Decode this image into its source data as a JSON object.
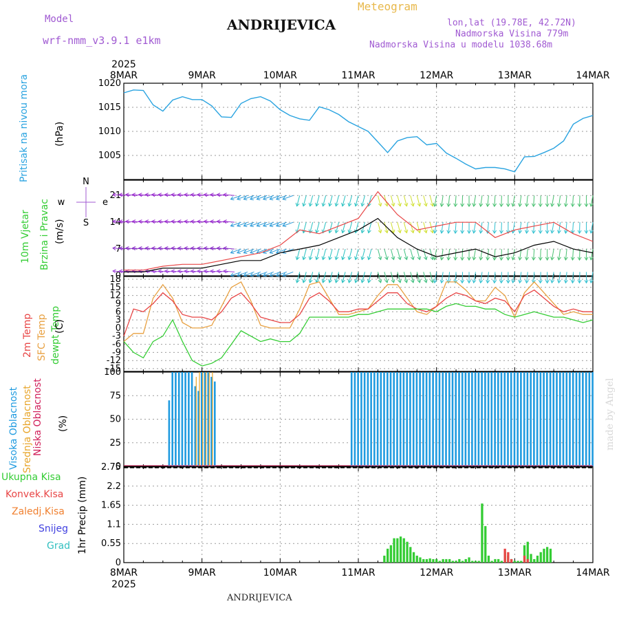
{
  "header": {
    "model_label": "Model",
    "model_name": "wrf-nmm_v3.9.1 e1km",
    "title": "ANDRIJEVICA",
    "meteogram": "Meteogram",
    "lonlat": "lon,lat (19.78E, 42.72N)",
    "altitude": "Nadmorska Visina 779m",
    "model_altitude": "Nadmorska Visina u modelu 1038.68m",
    "footer_title": "ANDRIJEVICA",
    "credit": "made by Angel"
  },
  "time_axis": {
    "year_top": "2025",
    "year_bottom": "2025",
    "labels": [
      "8MAR",
      "9MAR",
      "10MAR",
      "11MAR",
      "12MAR",
      "13MAR",
      "14MAR"
    ]
  },
  "panel_labels": {
    "pressure": [
      "Pritisak na nivou mora",
      "(hPa)"
    ],
    "wind": [
      "10m Vjetar",
      "Brzina i Pravac",
      "(m/s)"
    ],
    "compass": {
      "w": "w",
      "e": "e",
      "n": "N",
      "s": "S"
    },
    "temp": [
      "2m Temp",
      "SFC Temp",
      "dewpt Temp",
      "(C)"
    ],
    "cloud": [
      "Visoka Oblacnost",
      "Srednja Oblacnost",
      "Niska Oblacnost",
      "(%)"
    ],
    "precip_unit": "1hr Precip (mm)",
    "precip_legend": [
      "Ukupna Kisa",
      "Konvek.Kisa",
      "Zaledj.Kisa",
      "Snijeg",
      "Grad"
    ]
  },
  "colors": {
    "pressure": "#29a3e0",
    "t2m": "#e84545",
    "tsfc": "#e8a040",
    "dewpt": "#33cc33",
    "high_cloud": "#1f9be0",
    "mid_cloud": "#e8a52a",
    "low_cloud": "#d0205a",
    "total_rain": "#33cc33",
    "conv_rain": "#e84545",
    "freezing_rain": "#f08030",
    "snow": "#4040e0",
    "hail": "#33c0c0",
    "purple": "#a05ad2"
  },
  "chart_data": [
    {
      "type": "line",
      "name": "pressure",
      "ylim": [
        1000,
        1020
      ],
      "yticks": [
        1005,
        1010,
        1015,
        1020
      ],
      "grid": true,
      "x": [
        0,
        3,
        6,
        9,
        12,
        15,
        18,
        21,
        24,
        27,
        30,
        33,
        36,
        39,
        42,
        45,
        48,
        51,
        54,
        57,
        60,
        63,
        66,
        69,
        72,
        75,
        78,
        81,
        84,
        87,
        90,
        93,
        96,
        99,
        102,
        105,
        108,
        111,
        114,
        117,
        120,
        123,
        126,
        129,
        132,
        135,
        138,
        141,
        144
      ],
      "series": [
        {
          "name": "Pritisak na nivou mora",
          "values": [
            1018,
            1018.6,
            1018.5,
            1015.5,
            1014.2,
            1016.5,
            1017.2,
            1016.6,
            1016.6,
            1015.3,
            1013,
            1012.9,
            1015.8,
            1016.8,
            1017.2,
            1016.3,
            1014.5,
            1013.3,
            1012.6,
            1012.3,
            1015.1,
            1014.5,
            1013.5,
            1012,
            1011,
            1010,
            1007.8,
            1005.6,
            1008,
            1008.7,
            1008.9,
            1007.2,
            1007.5,
            1005.5,
            1004.4,
            1003.2,
            1002.2,
            1002.5,
            1002.5,
            1002.2,
            1001.6,
            1004.7,
            1004.8,
            1005.6,
            1006.5,
            1008,
            1011.5,
            1012.7,
            1013.3
          ]
        }
      ]
    },
    {
      "type": "line",
      "name": "wind",
      "ylim": [
        0,
        25
      ],
      "yticks": [
        0,
        7,
        14,
        21
      ],
      "grid": true,
      "x": [
        0,
        6,
        12,
        18,
        24,
        30,
        36,
        42,
        48,
        54,
        60,
        66,
        72,
        78,
        84,
        90,
        96,
        102,
        108,
        114,
        120,
        126,
        132,
        138,
        144
      ],
      "series": [
        {
          "name": "wind speed",
          "values": [
            1,
            1,
            2,
            2,
            2,
            3,
            4,
            4,
            6,
            7,
            8,
            10,
            12,
            15,
            10,
            7,
            5,
            6,
            7,
            5,
            6,
            8,
            9,
            7,
            6
          ]
        },
        {
          "name": "wind gust",
          "values": [
            1.5,
            1.5,
            2.5,
            3,
            3,
            4,
            5,
            6,
            8,
            12,
            11,
            13,
            15,
            22,
            16,
            12,
            13,
            14,
            14,
            10,
            12,
            13,
            14,
            11,
            9
          ]
        }
      ]
    },
    {
      "type": "line",
      "name": "temperature",
      "ylim": [
        -16,
        19
      ],
      "yticks": [
        -15,
        -12,
        -9,
        -6,
        -3,
        0,
        3,
        6,
        9,
        12,
        15,
        18
      ],
      "grid": true,
      "x": [
        0,
        3,
        6,
        9,
        12,
        15,
        18,
        21,
        24,
        27,
        30,
        33,
        36,
        39,
        42,
        45,
        48,
        51,
        54,
        57,
        60,
        63,
        66,
        69,
        72,
        75,
        78,
        81,
        84,
        87,
        90,
        93,
        96,
        99,
        102,
        105,
        108,
        111,
        114,
        117,
        120,
        123,
        126,
        129,
        132,
        135,
        138,
        141,
        144
      ],
      "series": [
        {
          "name": "2m Temp",
          "values": [
            -3,
            7,
            6,
            9,
            13,
            10,
            5,
            4,
            4,
            3,
            6,
            11,
            13,
            9,
            4,
            3,
            2,
            2,
            5,
            11,
            13,
            10,
            6,
            6,
            7,
            7,
            10,
            13,
            13,
            9,
            7,
            6,
            8,
            11,
            13,
            12,
            10,
            9,
            11,
            10,
            6,
            12,
            14,
            11,
            8,
            6,
            7,
            6,
            6
          ]
        },
        {
          "name": "SFC Temp",
          "values": [
            -5,
            -2,
            -2,
            11,
            16,
            11,
            2,
            0,
            0,
            1,
            8,
            15,
            17,
            10,
            1,
            0,
            0,
            0,
            7,
            16,
            17,
            11,
            5,
            5,
            6,
            7,
            12,
            16,
            16,
            11,
            6,
            5,
            8,
            17,
            17,
            14,
            10,
            10,
            15,
            12,
            4,
            13,
            17,
            13,
            9,
            5,
            6,
            5,
            5
          ]
        },
        {
          "name": "dewpt Temp",
          "values": [
            -5,
            -9,
            -11,
            -5,
            -3,
            3,
            -5,
            -12,
            -14,
            -13,
            -11,
            -6,
            -1,
            -3,
            -5,
            -4,
            -5,
            -5,
            -2,
            4,
            4,
            4,
            4,
            4,
            5,
            5,
            6,
            7,
            7,
            7,
            7,
            7,
            6,
            8,
            9,
            8,
            8,
            7,
            7,
            5,
            4,
            5,
            6,
            5,
            4,
            4,
            3,
            2,
            3
          ]
        }
      ]
    },
    {
      "type": "bar",
      "name": "cloud",
      "ylim": [
        0,
        100
      ],
      "yticks": [
        0,
        25,
        50,
        75,
        100
      ],
      "grid": true,
      "x": [
        14,
        15,
        16,
        17,
        18,
        19,
        20,
        21,
        22,
        23,
        24,
        25,
        26,
        27,
        28,
        29,
        30,
        31,
        32,
        33,
        34,
        35,
        36,
        37,
        38,
        39,
        40,
        41,
        42,
        43,
        44,
        45,
        46,
        47,
        48,
        49,
        50,
        51,
        52,
        53,
        54,
        55,
        56,
        57,
        58,
        59,
        60,
        61,
        62,
        63,
        64,
        65,
        66,
        67,
        68,
        69,
        70,
        71,
        72,
        73,
        74,
        75,
        76,
        77,
        78,
        79,
        80,
        81,
        82,
        83,
        84,
        85,
        86,
        87,
        88,
        89,
        90,
        91,
        92,
        93,
        94,
        95,
        96,
        97,
        98,
        99,
        100,
        101,
        102,
        103,
        104,
        105,
        106,
        107,
        108,
        109,
        110,
        111,
        112,
        113,
        114,
        115,
        116,
        117,
        118,
        119,
        120,
        121,
        122,
        123,
        124,
        125,
        126,
        127,
        128,
        129,
        130,
        131,
        132,
        133,
        134,
        135,
        136,
        137,
        138,
        139,
        140,
        141,
        142,
        143,
        144
      ],
      "series": [
        {
          "name": "Visoka Oblacnost",
          "values": [
            70,
            100,
            100,
            100,
            100,
            100,
            100,
            100,
            85,
            80,
            100,
            100,
            100,
            95,
            90,
            0,
            0,
            0,
            0,
            0,
            0,
            0,
            0,
            0,
            0,
            0,
            0,
            0,
            0,
            0,
            0,
            0,
            0,
            0,
            0,
            0,
            0,
            0,
            0,
            0,
            0,
            0,
            0,
            0,
            0,
            0,
            0,
            0,
            0,
            0,
            0,
            0,
            0,
            0,
            0,
            0,
            100,
            100,
            100,
            100,
            100,
            100,
            100,
            100,
            100,
            100,
            100,
            100,
            100,
            100,
            100,
            100,
            100,
            100,
            100,
            100,
            100,
            100,
            100,
            100,
            100,
            100,
            100,
            100,
            100,
            100,
            100,
            100,
            100,
            100,
            100,
            100,
            100,
            100,
            100,
            100,
            100,
            100,
            100,
            100,
            100,
            100,
            100,
            100,
            100,
            100,
            100,
            100,
            100,
            100,
            100,
            100,
            100,
            100,
            100,
            100,
            100,
            100,
            100,
            100,
            100,
            100,
            100,
            100,
            100,
            100,
            100,
            100,
            100,
            100,
            100
          ]
        },
        {
          "name": "Srednja Oblacnost",
          "values": [
            0,
            0,
            0,
            0,
            0,
            0,
            0,
            0,
            95,
            100,
            100,
            100,
            100,
            100,
            0,
            0,
            0,
            0,
            0,
            0,
            0,
            0,
            0,
            0,
            0,
            0,
            0,
            0,
            0,
            0,
            0,
            0,
            0,
            0,
            0,
            0,
            0,
            0,
            0,
            0,
            0,
            0,
            0,
            0,
            0,
            0,
            0,
            0,
            0,
            0,
            0,
            0,
            0,
            0,
            0,
            0,
            0,
            0,
            0,
            0,
            0,
            0,
            0,
            0,
            0,
            0,
            0,
            0,
            0,
            0,
            0,
            0,
            0,
            0,
            0,
            0,
            0,
            0,
            0,
            0,
            0,
            0,
            0,
            0,
            0,
            0,
            0,
            0,
            0,
            0,
            0,
            0,
            0,
            0,
            0,
            0,
            0,
            0,
            0,
            0,
            0,
            0,
            0,
            0,
            0,
            0,
            0,
            0,
            0,
            0,
            0,
            0,
            0,
            0,
            0,
            0,
            0,
            0,
            0,
            0,
            0,
            0,
            0,
            0,
            0,
            0,
            0,
            0,
            0,
            0,
            0
          ]
        },
        {
          "name": "Niska Oblacnost",
          "values": [
            0,
            0,
            0,
            0,
            0,
            0,
            0,
            0,
            0,
            0,
            0,
            0,
            0,
            0,
            0,
            0,
            0,
            0,
            0,
            0,
            0,
            0,
            0,
            0,
            0,
            0,
            0,
            0,
            0,
            0,
            0,
            0,
            0,
            0,
            0,
            0,
            0,
            0,
            0,
            0,
            0,
            0,
            0,
            0,
            0,
            0,
            0,
            0,
            0,
            0,
            0,
            0,
            0,
            0,
            0,
            0,
            0,
            0,
            0,
            0,
            0,
            0,
            0,
            0,
            0,
            0,
            0,
            0,
            0,
            0,
            0,
            0,
            0,
            0,
            0,
            0,
            0,
            0,
            0,
            0,
            0,
            0,
            0,
            0,
            0,
            0,
            0,
            0,
            0,
            0,
            0,
            0,
            0,
            0,
            0,
            0,
            0,
            0,
            0,
            0,
            0,
            0,
            0,
            0,
            0,
            0,
            0,
            0,
            0,
            0,
            0,
            0,
            0,
            0,
            0,
            0,
            0,
            0,
            0,
            0,
            0,
            0,
            0,
            0,
            0,
            0,
            0,
            0,
            0,
            0,
            0
          ]
        }
      ]
    },
    {
      "type": "bar",
      "name": "precip",
      "ylim": [
        0,
        2.75
      ],
      "yticks": [
        0,
        0.55,
        1.1,
        1.65,
        2.2,
        2.75
      ],
      "grid": true,
      "x": [
        80,
        81,
        82,
        83,
        84,
        85,
        86,
        87,
        88,
        89,
        90,
        91,
        92,
        93,
        94,
        95,
        96,
        97,
        98,
        99,
        100,
        101,
        102,
        103,
        104,
        105,
        106,
        107,
        108,
        109,
        110,
        111,
        112,
        113,
        114,
        115,
        116,
        117,
        118,
        119,
        120,
        121,
        122,
        123,
        124,
        125,
        126,
        127,
        128,
        129,
        130,
        131
      ],
      "series": [
        {
          "name": "Ukupna Kisa",
          "values": [
            0.2,
            0.4,
            0.5,
            0.7,
            0.7,
            0.75,
            0.7,
            0.6,
            0.45,
            0.3,
            0.2,
            0.15,
            0.1,
            0.1,
            0.12,
            0.1,
            0.1,
            0.05,
            0.1,
            0.1,
            0.1,
            0.05,
            0.05,
            0.1,
            0.05,
            0.1,
            0.15,
            0.05,
            0.05,
            0.05,
            1.7,
            1.05,
            0.2,
            0.05,
            0.1,
            0.1,
            0.05,
            0.3,
            0.2,
            0.1,
            0.05,
            0.05,
            0.05,
            0.5,
            0.6,
            0.25,
            0.1,
            0.2,
            0.3,
            0.4,
            0.45,
            0.4
          ]
        },
        {
          "name": "Konvek.Kisa",
          "values": [
            0,
            0,
            0,
            0,
            0,
            0,
            0,
            0,
            0,
            0,
            0,
            0,
            0,
            0,
            0,
            0,
            0,
            0,
            0,
            0,
            0,
            0,
            0,
            0,
            0,
            0,
            0,
            0,
            0,
            0,
            0,
            0,
            0,
            0,
            0,
            0,
            0,
            0.4,
            0.3,
            0.1,
            0,
            0,
            0,
            0.2,
            0.1,
            0,
            0,
            0,
            0,
            0,
            0,
            0
          ]
        }
      ]
    }
  ]
}
